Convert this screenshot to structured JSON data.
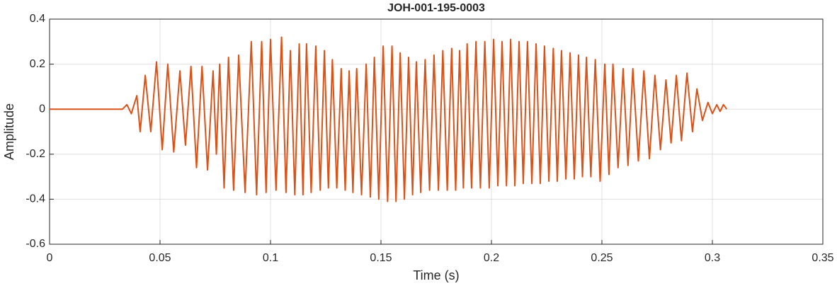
{
  "chart_data": {
    "type": "line",
    "title": "JOH-001-195-0003",
    "x_label": "Time (s)",
    "y_label": "Amplitude",
    "color": "#d95319",
    "grid": true,
    "xlim": [
      0,
      0.35
    ],
    "xticks": [
      0,
      0.05,
      0.1,
      0.15,
      0.2,
      0.25,
      0.3,
      0.35
    ],
    "ylim": [
      -0.6,
      0.4
    ],
    "yticks": [
      -0.6,
      -0.4,
      -0.2,
      0,
      0.2,
      0.4
    ],
    "x": [
      0,
      0.033,
      0.035,
      0.037,
      0.0395,
      0.041,
      0.0433,
      0.0458,
      0.0484,
      0.051,
      0.0535,
      0.0562,
      0.059,
      0.0615,
      0.064,
      0.0665,
      0.069,
      0.0715,
      0.074,
      0.0755,
      0.077,
      0.079,
      0.081,
      0.0833,
      0.0856,
      0.0885,
      0.0913,
      0.0937,
      0.096,
      0.098,
      0.1,
      0.1025,
      0.105,
      0.107,
      0.109,
      0.111,
      0.113,
      0.1147,
      0.1163,
      0.1184,
      0.1205,
      0.1225,
      0.1244,
      0.1262,
      0.128,
      0.13,
      0.132,
      0.1338,
      0.1356,
      0.1373,
      0.139,
      0.1412,
      0.1433,
      0.1452,
      0.147,
      0.149,
      0.151,
      0.153,
      0.155,
      0.1568,
      0.1587,
      0.1606,
      0.1625,
      0.1643,
      0.166,
      0.168,
      0.17,
      0.172,
      0.174,
      0.176,
      0.178,
      0.18,
      0.182,
      0.1838,
      0.1856,
      0.1873,
      0.189,
      0.191,
      0.193,
      0.195,
      0.197,
      0.199,
      0.201,
      0.2029,
      0.2048,
      0.2068,
      0.2087,
      0.2106,
      0.2125,
      0.2144,
      0.2163,
      0.2183,
      0.2202,
      0.2221,
      0.224,
      0.226,
      0.228,
      0.2298,
      0.2317,
      0.2337,
      0.2356,
      0.2375,
      0.2394,
      0.2412,
      0.243,
      0.245,
      0.247,
      0.2492,
      0.2513,
      0.2532,
      0.255,
      0.2573,
      0.2596,
      0.2618,
      0.264,
      0.2665,
      0.269,
      0.2715,
      0.274,
      0.2765,
      0.279,
      0.2813,
      0.2837,
      0.286,
      0.2885,
      0.291,
      0.293,
      0.2955,
      0.298,
      0.3,
      0.302,
      0.3035,
      0.305,
      0.3065
    ],
    "values": [
      0,
      0,
      0.02,
      -0.02,
      0.06,
      -0.1,
      0.15,
      -0.1,
      0.21,
      -0.18,
      0.2,
      -0.19,
      0.17,
      -0.16,
      0.19,
      -0.26,
      0.19,
      -0.27,
      0.17,
      -0.2,
      0.2,
      -0.35,
      0.23,
      -0.36,
      0.24,
      -0.37,
      0.3,
      -0.38,
      0.3,
      -0.37,
      0.31,
      -0.36,
      0.32,
      -0.37,
      0.26,
      -0.38,
      0.29,
      -0.38,
      0.29,
      -0.37,
      0.28,
      -0.36,
      0.26,
      -0.35,
      0.22,
      -0.35,
      0.18,
      -0.36,
      0.17,
      -0.37,
      0.18,
      -0.38,
      0.2,
      -0.39,
      0.23,
      -0.4,
      0.28,
      -0.41,
      0.28,
      -0.41,
      0.25,
      -0.4,
      0.23,
      -0.38,
      0.21,
      -0.37,
      0.22,
      -0.36,
      0.24,
      -0.36,
      0.26,
      -0.36,
      0.27,
      -0.36,
      0.26,
      -0.35,
      0.29,
      -0.35,
      0.3,
      -0.35,
      0.3,
      -0.35,
      0.31,
      -0.34,
      0.3,
      -0.34,
      0.31,
      -0.34,
      0.3,
      -0.33,
      0.3,
      -0.33,
      0.29,
      -0.33,
      0.28,
      -0.32,
      0.27,
      -0.32,
      0.26,
      -0.31,
      0.25,
      -0.31,
      0.24,
      -0.3,
      0.23,
      -0.3,
      0.22,
      -0.32,
      0.2,
      -0.29,
      0.2,
      -0.26,
      0.18,
      -0.25,
      0.18,
      -0.23,
      0.17,
      -0.22,
      0.15,
      -0.18,
      0.13,
      -0.15,
      0.15,
      -0.14,
      0.16,
      -0.1,
      0.09,
      -0.05,
      0.03,
      -0.02,
      0.02,
      -0.01,
      0.02,
      0
    ]
  }
}
